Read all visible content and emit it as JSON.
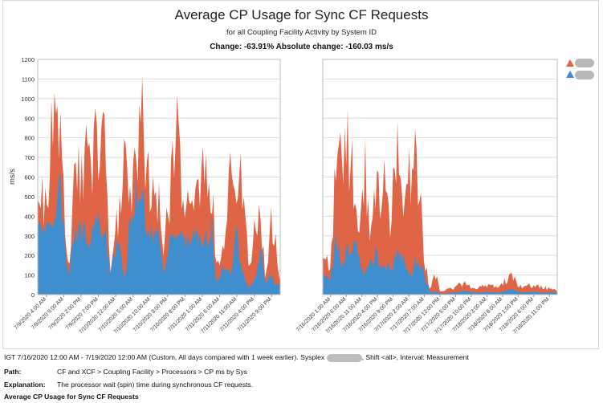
{
  "chart_data": {
    "type": "area",
    "title": "Average CP Usage for Sync CF Requests",
    "subtitle": "for all Coupling Facility Activity by System ID",
    "change_text": "Change: -63.91% Absolute change: -160.03 ms/s",
    "ylabel": "ms/s",
    "ylim": [
      0,
      1200
    ],
    "yticks": [
      0,
      100,
      200,
      300,
      400,
      500,
      600,
      700,
      800,
      900,
      1000,
      1100,
      1200
    ],
    "grid": true,
    "stacked": true,
    "legend_position": "top-right",
    "series_colors": [
      "#3f8fcf",
      "#e06446"
    ],
    "panels": [
      {
        "period": "baseline",
        "x_ticks": [
          "7/9/2020 4:00 AM",
          "7/9/2020 9:00 AM",
          "7/9/2020 2:00 PM",
          "7/9/2020 7:00 PM",
          "7/10/2020 12:00 AM",
          "7/10/2020 5:00 AM",
          "7/10/2020 10:00 AM",
          "7/10/2020 3:00 PM",
          "7/10/2020 8:00 PM",
          "7/11/2020 1:00 AM",
          "7/11/2020 6:00 AM",
          "7/11/2020 11:00 AM",
          "7/11/2020 4:00 PM",
          "7/11/2020 9:00 PM"
        ],
        "keypoints": [
          {
            "x": 0.0,
            "blue": 480,
            "total": 620
          },
          {
            "x": 0.02,
            "blue": 430,
            "total": 640
          },
          {
            "x": 0.04,
            "blue": 370,
            "total": 560
          },
          {
            "x": 0.06,
            "blue": 430,
            "total": 1000
          },
          {
            "x": 0.075,
            "blue": 480,
            "total": 1060
          },
          {
            "x": 0.095,
            "blue": 560,
            "total": 1040
          },
          {
            "x": 0.11,
            "blue": 300,
            "total": 420
          },
          {
            "x": 0.13,
            "blue": 100,
            "total": 180
          },
          {
            "x": 0.15,
            "blue": 360,
            "total": 700
          },
          {
            "x": 0.19,
            "blue": 350,
            "total": 820
          },
          {
            "x": 0.22,
            "blue": 330,
            "total": 760
          },
          {
            "x": 0.25,
            "blue": 380,
            "total": 990
          },
          {
            "x": 0.28,
            "blue": 350,
            "total": 880
          },
          {
            "x": 0.3,
            "blue": 100,
            "total": 170
          },
          {
            "x": 0.33,
            "blue": 320,
            "total": 500
          },
          {
            "x": 0.36,
            "blue": 70,
            "total": 920
          },
          {
            "x": 0.38,
            "blue": 380,
            "total": 600
          },
          {
            "x": 0.41,
            "blue": 560,
            "total": 1000
          },
          {
            "x": 0.435,
            "blue": 520,
            "total": 1070
          },
          {
            "x": 0.46,
            "blue": 310,
            "total": 600
          },
          {
            "x": 0.49,
            "blue": 360,
            "total": 640
          },
          {
            "x": 0.52,
            "blue": 100,
            "total": 300
          },
          {
            "x": 0.55,
            "blue": 300,
            "total": 740
          },
          {
            "x": 0.58,
            "blue": 420,
            "total": 1000
          },
          {
            "x": 0.6,
            "blue": 320,
            "total": 620
          },
          {
            "x": 0.62,
            "blue": 300,
            "total": 480
          },
          {
            "x": 0.65,
            "blue": 330,
            "total": 560
          },
          {
            "x": 0.69,
            "blue": 300,
            "total": 820
          },
          {
            "x": 0.72,
            "blue": 380,
            "total": 720
          },
          {
            "x": 0.735,
            "blue": 60,
            "total": 160
          },
          {
            "x": 0.76,
            "blue": 140,
            "total": 200
          },
          {
            "x": 0.8,
            "blue": 130,
            "total": 880
          },
          {
            "x": 0.82,
            "blue": 400,
            "total": 640
          },
          {
            "x": 0.84,
            "blue": 120,
            "total": 820
          },
          {
            "x": 0.87,
            "blue": 40,
            "total": 120
          },
          {
            "x": 0.9,
            "blue": 80,
            "total": 420
          },
          {
            "x": 0.92,
            "blue": 280,
            "total": 440
          },
          {
            "x": 0.94,
            "blue": 40,
            "total": 80
          },
          {
            "x": 0.96,
            "blue": 110,
            "total": 420
          },
          {
            "x": 0.98,
            "blue": 50,
            "total": 400
          },
          {
            "x": 1.0,
            "blue": 50,
            "total": 80
          }
        ]
      },
      {
        "period": "current",
        "x_ticks": [
          "7/16/2020 1:00 AM",
          "7/16/2020 6:00 AM",
          "7/16/2020 11:00 AM",
          "7/16/2020 4:00 PM",
          "7/16/2020 9:00 PM",
          "7/17/2020 2:00 AM",
          "7/17/2020 7:00 AM",
          "7/17/2020 12:00 PM",
          "7/17/2020 5:00 PM",
          "7/17/2020 10:00 PM",
          "7/18/2020 3:00 AM",
          "7/18/2020 8:00 AM",
          "7/18/2020 1:00 PM",
          "7/18/2020 6:00 PM",
          "7/18/2020 11:00 PM"
        ],
        "keypoints": [
          {
            "x": 0.0,
            "blue": 120,
            "total": 240
          },
          {
            "x": 0.03,
            "blue": 80,
            "total": 180
          },
          {
            "x": 0.06,
            "blue": 300,
            "total": 920
          },
          {
            "x": 0.08,
            "blue": 150,
            "total": 700
          },
          {
            "x": 0.1,
            "blue": 260,
            "total": 930
          },
          {
            "x": 0.12,
            "blue": 200,
            "total": 860
          },
          {
            "x": 0.14,
            "blue": 320,
            "total": 620
          },
          {
            "x": 0.16,
            "blue": 150,
            "total": 340
          },
          {
            "x": 0.18,
            "blue": 100,
            "total": 820
          },
          {
            "x": 0.2,
            "blue": 180,
            "total": 360
          },
          {
            "x": 0.23,
            "blue": 220,
            "total": 600
          },
          {
            "x": 0.26,
            "blue": 150,
            "total": 740
          },
          {
            "x": 0.29,
            "blue": 140,
            "total": 300
          },
          {
            "x": 0.31,
            "blue": 200,
            "total": 940
          },
          {
            "x": 0.33,
            "blue": 260,
            "total": 680
          },
          {
            "x": 0.36,
            "blue": 140,
            "total": 600
          },
          {
            "x": 0.38,
            "blue": 100,
            "total": 880
          },
          {
            "x": 0.4,
            "blue": 200,
            "total": 840
          },
          {
            "x": 0.42,
            "blue": 160,
            "total": 520
          },
          {
            "x": 0.44,
            "blue": 80,
            "total": 150
          },
          {
            "x": 0.46,
            "blue": 10,
            "total": 30
          },
          {
            "x": 0.48,
            "blue": 20,
            "total": 130
          },
          {
            "x": 0.5,
            "blue": 5,
            "total": 20
          },
          {
            "x": 0.55,
            "blue": 10,
            "total": 40
          },
          {
            "x": 0.6,
            "blue": 20,
            "total": 70
          },
          {
            "x": 0.65,
            "blue": 10,
            "total": 40
          },
          {
            "x": 0.7,
            "blue": 15,
            "total": 60
          },
          {
            "x": 0.75,
            "blue": 10,
            "total": 40
          },
          {
            "x": 0.8,
            "blue": 30,
            "total": 120
          },
          {
            "x": 0.85,
            "blue": 10,
            "total": 40
          },
          {
            "x": 0.9,
            "blue": 15,
            "total": 60
          },
          {
            "x": 0.95,
            "blue": 10,
            "total": 40
          },
          {
            "x": 1.0,
            "blue": 15,
            "total": 30
          }
        ]
      }
    ]
  },
  "footer": {
    "range_text": "IGT 7/16/2020 12:00 AM - 7/19/2020 12:00 AM (Custom, All days compared with 1 week earlier). Sysplex",
    "range_text_after": ", Shift <all>, Interval: Measurement",
    "path_label": "Path:",
    "path_value": "CF and XCF > Coupling Facility > Processors > CP ms by Sys",
    "explanation_label": "Explanation:",
    "explanation_value": "The processor wait (spin) time during synchronous CF requests.",
    "report_title": "Average CP Usage for Sync CF Requests"
  }
}
